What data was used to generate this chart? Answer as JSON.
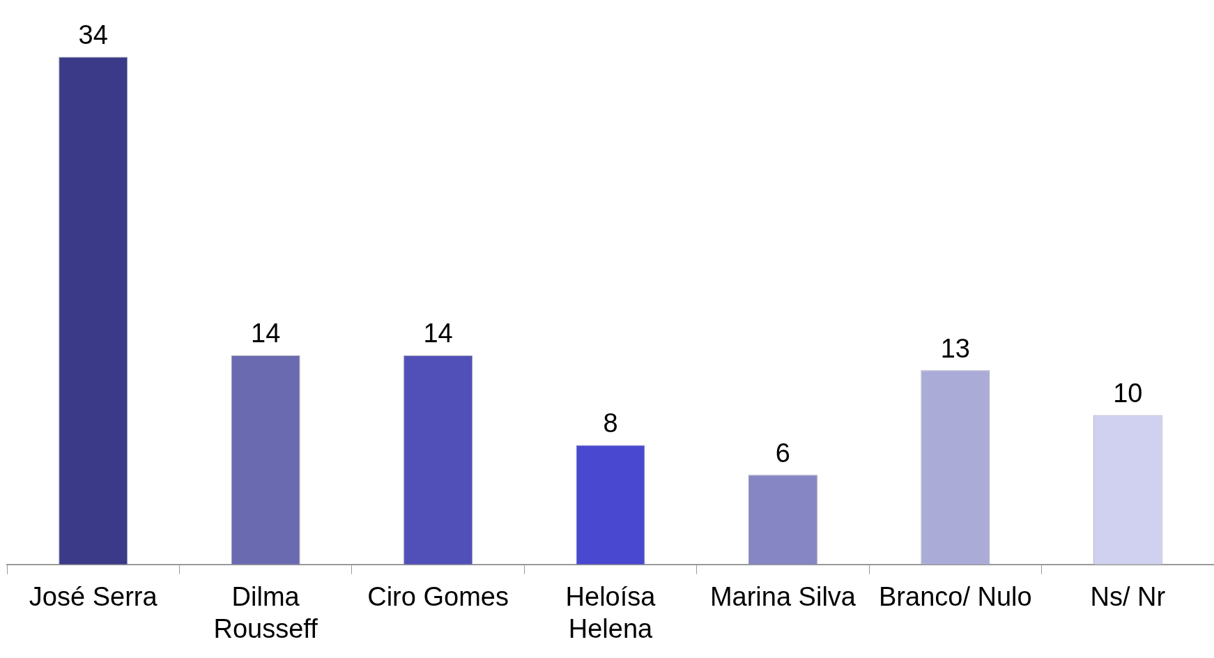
{
  "chart_data": {
    "type": "bar",
    "categories": [
      "José Serra",
      "Dilma Rousseff",
      "Ciro Gomes",
      "Heloísa Helena",
      "Marina Silva",
      "Branco/ Nulo",
      "Ns/ Nr"
    ],
    "values": [
      34,
      14,
      14,
      8,
      6,
      13,
      10
    ],
    "colors": [
      "#3a3a88",
      "#6a6ab0",
      "#5050b8",
      "#4848d0",
      "#8686c4",
      "#ababd8",
      "#d0d0f0"
    ],
    "data_labels": true,
    "grid": false,
    "legend": false,
    "tick_labels": "x"
  }
}
